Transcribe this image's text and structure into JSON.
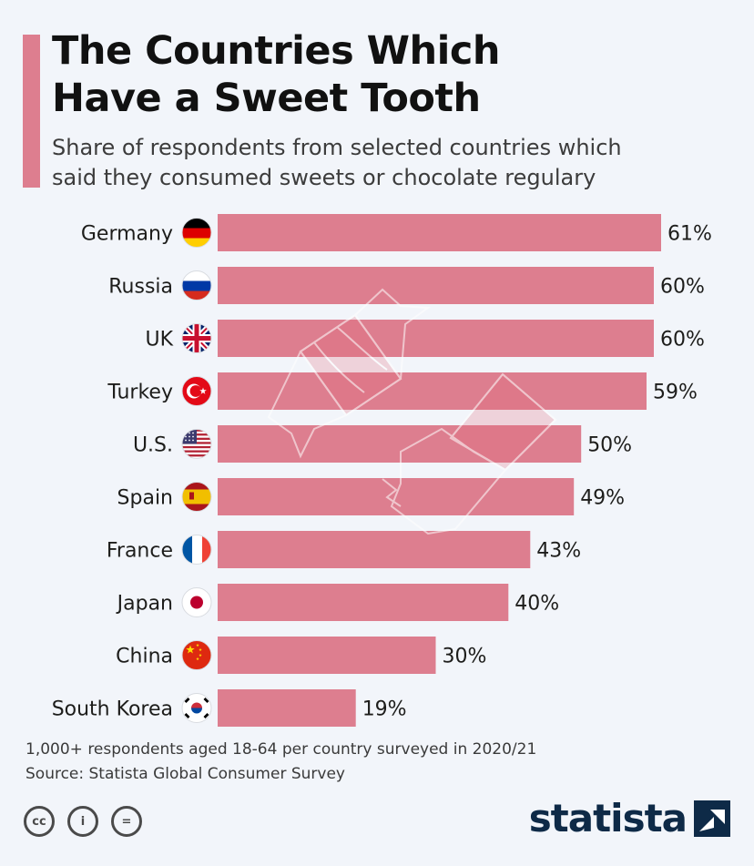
{
  "header": {
    "title_line1": "The Countries Which",
    "title_line2": "Have a Sweet Tooth",
    "subtitle_line1": "Share of respondents from selected countries which",
    "subtitle_line2": "said they consumed sweets or chocolate regulary"
  },
  "colors": {
    "bar": "#dd7e8f",
    "accent": "#dd7e8f",
    "background": "#f2f5fa",
    "brand": "#0e2a47"
  },
  "chart_data": {
    "type": "bar",
    "orientation": "horizontal",
    "categories": [
      "Germany",
      "Russia",
      "UK",
      "Turkey",
      "U.S.",
      "Spain",
      "France",
      "Japan",
      "China",
      "South Korea"
    ],
    "values": [
      61,
      60,
      60,
      59,
      50,
      49,
      43,
      40,
      30,
      19
    ],
    "value_labels": [
      "61%",
      "60%",
      "60%",
      "59%",
      "50%",
      "49%",
      "43%",
      "40%",
      "30%",
      "19%"
    ],
    "flags": [
      "germany-flag-icon",
      "russia-flag-icon",
      "uk-flag-icon",
      "turkey-flag-icon",
      "us-flag-icon",
      "spain-flag-icon",
      "france-flag-icon",
      "japan-flag-icon",
      "china-flag-icon",
      "south-korea-flag-icon"
    ],
    "unit": "%",
    "xlim": [
      0,
      61
    ],
    "grid": false,
    "legend": "none"
  },
  "footer": {
    "note": "1,000+ respondents aged 18-64 per country surveyed in 2020/21",
    "source": "Source: Statista Global Consumer Survey",
    "license_icons": [
      "creative-commons-icon",
      "attribution-icon",
      "no-derivatives-icon"
    ],
    "license_glyphs": [
      "cc",
      "i",
      "="
    ],
    "brand": "statista"
  }
}
